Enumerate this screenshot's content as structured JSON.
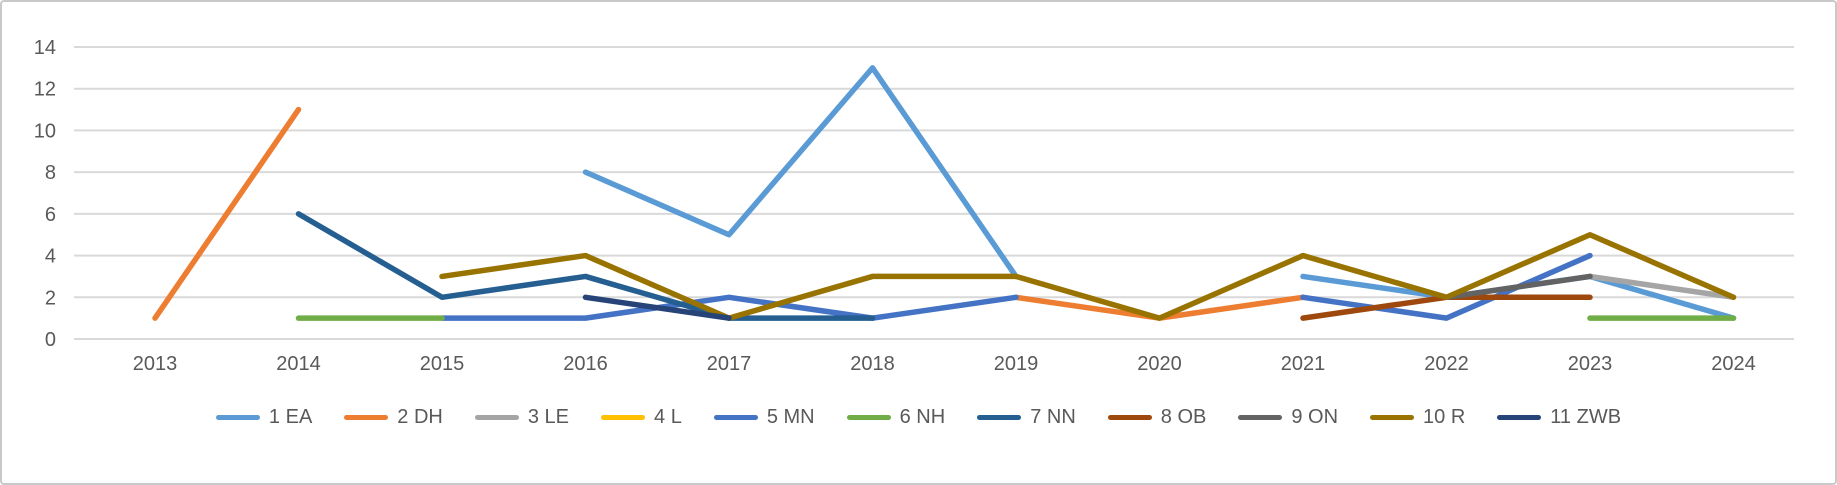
{
  "chart_data": {
    "type": "line",
    "title": "",
    "xlabel": "",
    "ylabel": "",
    "x_categories": [
      "2013",
      "2014",
      "2015",
      "2016",
      "2017",
      "2018",
      "2019",
      "2020",
      "2021",
      "2022",
      "2023",
      "2024"
    ],
    "y_ticks": [
      0,
      2,
      4,
      6,
      8,
      10,
      12,
      14
    ],
    "ylim": [
      0,
      14
    ],
    "grid": true,
    "legend_position": "bottom",
    "axis_text_color": "#595959",
    "gridline_color": "#d9d9d9",
    "series": [
      {
        "name": "1 EA",
        "color": "#5B9BD5",
        "values": [
          null,
          null,
          null,
          8,
          5,
          13,
          3,
          null,
          3,
          2,
          3,
          1
        ]
      },
      {
        "name": "2 DH",
        "color": "#ED7D31",
        "values": [
          1,
          11,
          null,
          null,
          null,
          null,
          2,
          1,
          2,
          null,
          null,
          null
        ]
      },
      {
        "name": "3 LE",
        "color": "#A5A5A5",
        "values": [
          null,
          null,
          null,
          null,
          null,
          null,
          null,
          null,
          null,
          null,
          3,
          2
        ]
      },
      {
        "name": "4 L",
        "color": "#FFC000",
        "values": [
          null,
          null,
          null,
          null,
          null,
          null,
          null,
          null,
          null,
          null,
          null,
          null
        ]
      },
      {
        "name": "5 MN",
        "color": "#4472C4",
        "values": [
          null,
          null,
          1,
          1,
          2,
          1,
          2,
          null,
          2,
          1,
          4,
          null
        ]
      },
      {
        "name": "6 NH",
        "color": "#70AD47",
        "values": [
          null,
          1,
          1,
          null,
          null,
          null,
          null,
          null,
          null,
          null,
          1,
          1
        ]
      },
      {
        "name": "7 NN",
        "color": "#255E91",
        "values": [
          null,
          6,
          2,
          3,
          1,
          1,
          null,
          null,
          null,
          null,
          null,
          null
        ]
      },
      {
        "name": "8 OB",
        "color": "#9E480E",
        "values": [
          null,
          null,
          null,
          null,
          null,
          null,
          null,
          null,
          1,
          2,
          2,
          null
        ]
      },
      {
        "name": "9 ON",
        "color": "#636363",
        "values": [
          null,
          null,
          null,
          null,
          null,
          null,
          null,
          null,
          null,
          2,
          3,
          null
        ]
      },
      {
        "name": "10 R",
        "color": "#997300",
        "values": [
          null,
          null,
          3,
          4,
          1,
          3,
          3,
          1,
          4,
          2,
          5,
          2
        ]
      },
      {
        "name": "11 ZWB",
        "color": "#264478",
        "values": [
          null,
          null,
          null,
          2,
          1,
          null,
          null,
          null,
          null,
          null,
          null,
          null
        ]
      }
    ]
  }
}
